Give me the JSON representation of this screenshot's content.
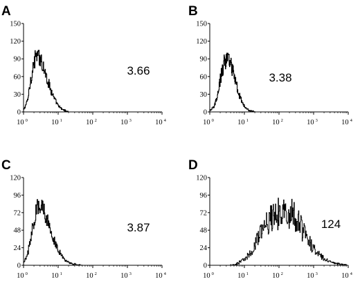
{
  "chart_data": [
    {
      "panel": "A",
      "type": "histogram",
      "x_scale": "log",
      "xlim": [
        1,
        10000
      ],
      "ylim": [
        0,
        150
      ],
      "y_ticks": [
        "0",
        "30",
        "60",
        "90",
        "120",
        "150"
      ],
      "x_ticks": [
        {
          "base": "10",
          "exp": "0"
        },
        {
          "base": "10",
          "exp": "1"
        },
        {
          "base": "10",
          "exp": "2"
        },
        {
          "base": "10",
          "exp": "3"
        },
        {
          "base": "10",
          "exp": "4"
        }
      ],
      "annotation": "3.66",
      "peak_x": 2.8,
      "peak_y": 105,
      "x": [
        1.0,
        1.3,
        1.6,
        2.0,
        2.5,
        3.2,
        4.0,
        5.0,
        6.3,
        8.0,
        10,
        13,
        16,
        20
      ],
      "values": [
        3,
        20,
        55,
        85,
        100,
        90,
        70,
        52,
        35,
        20,
        10,
        4,
        2,
        0
      ]
    },
    {
      "panel": "B",
      "type": "histogram",
      "x_scale": "log",
      "xlim": [
        1,
        10000
      ],
      "ylim": [
        0,
        150
      ],
      "y_ticks": [
        "0",
        "30",
        "60",
        "90",
        "120",
        "150"
      ],
      "x_ticks": [
        {
          "base": "10",
          "exp": "0"
        },
        {
          "base": "10",
          "exp": "1"
        },
        {
          "base": "10",
          "exp": "2"
        },
        {
          "base": "10",
          "exp": "3"
        },
        {
          "base": "10",
          "exp": "4"
        }
      ],
      "annotation": "3.38",
      "peak_x": 3.0,
      "peak_y": 100,
      "x": [
        1.0,
        1.3,
        1.6,
        2.0,
        2.5,
        3.2,
        4.0,
        5.0,
        6.3,
        8.0,
        10,
        13,
        16,
        20
      ],
      "values": [
        2,
        8,
        25,
        55,
        82,
        95,
        85,
        60,
        38,
        20,
        9,
        3,
        1,
        0
      ]
    },
    {
      "panel": "C",
      "type": "histogram",
      "x_scale": "log",
      "xlim": [
        1,
        10000
      ],
      "ylim": [
        0,
        120
      ],
      "y_ticks": [
        "0",
        "24",
        "48",
        "72",
        "96",
        "120"
      ],
      "x_ticks": [
        {
          "base": "10",
          "exp": "0"
        },
        {
          "base": "10",
          "exp": "1"
        },
        {
          "base": "10",
          "exp": "2"
        },
        {
          "base": "10",
          "exp": "3"
        },
        {
          "base": "10",
          "exp": "4"
        }
      ],
      "annotation": "3.87",
      "peak_x": 3.0,
      "peak_y": 90,
      "x": [
        1.0,
        1.3,
        1.6,
        2.0,
        2.5,
        3.2,
        4.0,
        5.0,
        6.3,
        8.0,
        10,
        13,
        16,
        20,
        25,
        32,
        40,
        50
      ],
      "values": [
        3,
        15,
        40,
        65,
        82,
        86,
        75,
        60,
        45,
        32,
        20,
        12,
        7,
        4,
        2,
        1,
        0.5,
        0
      ]
    },
    {
      "panel": "D",
      "type": "histogram",
      "x_scale": "log",
      "xlim": [
        1,
        10000
      ],
      "ylim": [
        0,
        120
      ],
      "y_ticks": [
        "0",
        "24",
        "48",
        "72",
        "96",
        "120"
      ],
      "x_ticks": [
        {
          "base": "10",
          "exp": "0"
        },
        {
          "base": "10",
          "exp": "1"
        },
        {
          "base": "10",
          "exp": "2"
        },
        {
          "base": "10",
          "exp": "3"
        },
        {
          "base": "10",
          "exp": "4"
        }
      ],
      "annotation": "124",
      "peak_x": 150,
      "peak_y": 100,
      "x": [
        4,
        6,
        10,
        16,
        25,
        40,
        63,
        100,
        160,
        250,
        400,
        630,
        1000,
        1600,
        2500,
        4000,
        6300,
        10000
      ],
      "values": [
        0,
        2,
        8,
        20,
        38,
        55,
        65,
        70,
        72,
        68,
        55,
        38,
        22,
        12,
        6,
        3,
        1,
        0
      ]
    }
  ]
}
